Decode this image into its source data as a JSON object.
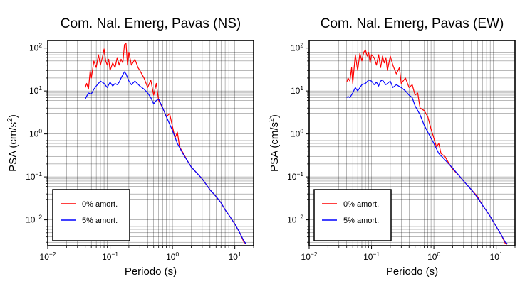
{
  "chart_data": [
    {
      "type": "line",
      "title": "Com. Nal. Emerg, Pavas (NS)",
      "xlabel": "Periodo (s)",
      "ylabel_base": "PSA (cm/s",
      "ylabel_sup": "2",
      "ylabel_tail": ")",
      "xscale": "log",
      "yscale": "log",
      "xlim": [
        0.01,
        20
      ],
      "ylim": [
        0.0025,
        150
      ],
      "grid": true,
      "legend_position": "bottom-left",
      "x_ticks": [
        {
          "base": "10",
          "exp": "−2"
        },
        {
          "base": "10",
          "exp": "−1"
        },
        {
          "base": "10",
          "exp": "0"
        },
        {
          "base": "10",
          "exp": "1"
        }
      ],
      "y_ticks": [
        {
          "base": "10",
          "exp": "−2"
        },
        {
          "base": "10",
          "exp": "−1"
        },
        {
          "base": "10",
          "exp": "0"
        },
        {
          "base": "10",
          "exp": "1"
        },
        {
          "base": "10",
          "exp": "2"
        }
      ],
      "series": [
        {
          "name": "0% amort.",
          "color": "#ff0000",
          "x": [
            0.04,
            0.042,
            0.045,
            0.048,
            0.05,
            0.055,
            0.06,
            0.065,
            0.07,
            0.075,
            0.08,
            0.085,
            0.09,
            0.095,
            0.1,
            0.11,
            0.12,
            0.13,
            0.14,
            0.15,
            0.16,
            0.17,
            0.18,
            0.19,
            0.2,
            0.22,
            0.25,
            0.28,
            0.3,
            0.35,
            0.4,
            0.45,
            0.5,
            0.55,
            0.6,
            0.7,
            0.8,
            0.9,
            1.0,
            1.1,
            1.2,
            1.3,
            1.5,
            1.7,
            2,
            2.5,
            3,
            4,
            5,
            6,
            7,
            8,
            10,
            12,
            14,
            15
          ],
          "y": [
            12,
            15,
            11,
            30,
            20,
            50,
            35,
            70,
            40,
            60,
            95,
            50,
            40,
            55,
            30,
            45,
            35,
            60,
            40,
            55,
            45,
            120,
            130,
            40,
            80,
            40,
            55,
            35,
            30,
            20,
            12,
            18,
            8,
            15,
            6,
            4,
            2.5,
            3,
            1.5,
            0.8,
            1.1,
            0.5,
            0.35,
            0.25,
            0.17,
            0.12,
            0.09,
            0.05,
            0.035,
            0.025,
            0.017,
            0.013,
            0.008,
            0.005,
            0.003,
            0.0028
          ]
        },
        {
          "name": "5% amort.",
          "color": "#0000ff",
          "x": [
            0.04,
            0.042,
            0.045,
            0.05,
            0.055,
            0.06,
            0.07,
            0.08,
            0.09,
            0.1,
            0.11,
            0.12,
            0.13,
            0.14,
            0.15,
            0.17,
            0.18,
            0.2,
            0.22,
            0.25,
            0.3,
            0.35,
            0.4,
            0.45,
            0.5,
            0.55,
            0.6,
            0.7,
            0.8,
            1.0,
            1.2,
            1.5,
            2,
            2.5,
            3,
            4,
            5,
            6,
            7,
            8,
            10,
            12,
            14,
            15
          ],
          "y": [
            6.5,
            7.5,
            9,
            8.5,
            11,
            13,
            17,
            15,
            12,
            16,
            13,
            15,
            14,
            16,
            20,
            28,
            25,
            17,
            14,
            17,
            13,
            11,
            9,
            7,
            5,
            6,
            6.5,
            4,
            2.5,
            1.2,
            0.6,
            0.33,
            0.17,
            0.12,
            0.09,
            0.05,
            0.035,
            0.025,
            0.017,
            0.013,
            0.008,
            0.005,
            0.0032,
            0.0028
          ]
        }
      ]
    },
    {
      "type": "line",
      "title": "Com. Nal. Emerg, Pavas (EW)",
      "xlabel": "Periodo (s)",
      "ylabel_base": "PSA (cm/s",
      "ylabel_sup": "2",
      "ylabel_tail": ")",
      "xscale": "log",
      "yscale": "log",
      "xlim": [
        0.01,
        20
      ],
      "ylim": [
        0.0025,
        150
      ],
      "grid": true,
      "legend_position": "bottom-left",
      "x_ticks": [
        {
          "base": "10",
          "exp": "−2"
        },
        {
          "base": "10",
          "exp": "−1"
        },
        {
          "base": "10",
          "exp": "0"
        },
        {
          "base": "10",
          "exp": "1"
        }
      ],
      "y_ticks": [
        {
          "base": "10",
          "exp": "−2"
        },
        {
          "base": "10",
          "exp": "−1"
        },
        {
          "base": "10",
          "exp": "0"
        },
        {
          "base": "10",
          "exp": "1"
        },
        {
          "base": "10",
          "exp": "2"
        }
      ],
      "series": [
        {
          "name": "0% amort.",
          "color": "#ff0000",
          "x": [
            0.04,
            0.042,
            0.045,
            0.048,
            0.05,
            0.055,
            0.06,
            0.065,
            0.07,
            0.075,
            0.08,
            0.085,
            0.09,
            0.095,
            0.1,
            0.11,
            0.12,
            0.13,
            0.14,
            0.15,
            0.16,
            0.17,
            0.18,
            0.2,
            0.22,
            0.25,
            0.28,
            0.3,
            0.35,
            0.4,
            0.45,
            0.5,
            0.55,
            0.6,
            0.7,
            0.8,
            0.9,
            1.0,
            1.1,
            1.2,
            1.3,
            1.5,
            1.7,
            2,
            2.5,
            3,
            4,
            5,
            6,
            7,
            8,
            10,
            12,
            14,
            15
          ],
          "y": [
            16,
            20,
            17,
            35,
            15,
            70,
            30,
            75,
            50,
            80,
            90,
            65,
            80,
            45,
            70,
            60,
            40,
            70,
            35,
            65,
            45,
            60,
            30,
            65,
            40,
            25,
            35,
            15,
            20,
            12,
            14,
            8,
            9,
            4,
            3.5,
            2.5,
            1.3,
            0.8,
            0.5,
            0.6,
            0.35,
            0.3,
            0.22,
            0.15,
            0.11,
            0.08,
            0.05,
            0.035,
            0.022,
            0.016,
            0.012,
            0.007,
            0.0045,
            0.0028,
            0.0027
          ]
        },
        {
          "name": "5% amort.",
          "color": "#0000ff",
          "x": [
            0.04,
            0.042,
            0.045,
            0.05,
            0.055,
            0.06,
            0.07,
            0.08,
            0.09,
            0.1,
            0.11,
            0.12,
            0.13,
            0.14,
            0.15,
            0.17,
            0.2,
            0.22,
            0.25,
            0.3,
            0.35,
            0.4,
            0.45,
            0.5,
            0.6,
            0.7,
            0.8,
            1.0,
            1.2,
            1.5,
            2,
            2.5,
            3,
            4,
            5,
            6,
            7,
            8,
            10,
            12,
            14,
            15
          ],
          "y": [
            7,
            7.5,
            7,
            9,
            12,
            10,
            14,
            15,
            18,
            17,
            14,
            16,
            13,
            17,
            18,
            14,
            17,
            12,
            14,
            12,
            10,
            8,
            7,
            4.5,
            2.8,
            1.6,
            1.1,
            0.6,
            0.35,
            0.25,
            0.16,
            0.11,
            0.08,
            0.05,
            0.033,
            0.022,
            0.016,
            0.012,
            0.007,
            0.0045,
            0.003,
            0.0028
          ]
        }
      ]
    }
  ]
}
